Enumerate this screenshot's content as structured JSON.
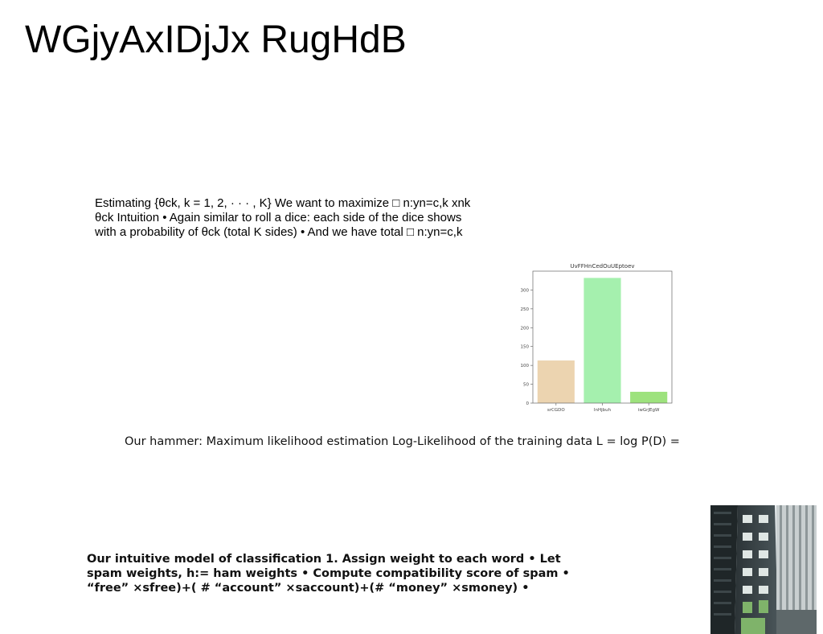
{
  "title": "WGjyAxIDjJx RugHdB",
  "paragraph1": {
    "lines": [
      "Estimating {θck, k = 1, 2, · · · , K} We want to maximize □ n:yn=c,k xnk",
      "θck Intuition • Again similar to roll a dice: each side of the dice shows",
      "with a probability of θck (total K sides) • And we have total □ n:yn=c,k"
    ]
  },
  "chart_data": {
    "type": "bar",
    "title": "UvFFHnCedOuUEptoev",
    "categories": [
      "srCGDO",
      "InHjbuh",
      "iwGrJEgW"
    ],
    "values": [
      113,
      332,
      30
    ],
    "colors": [
      "#ecd4b0",
      "#a5f0ae",
      "#9de27d"
    ],
    "ylim": [
      0,
      350
    ],
    "yticks": [
      0,
      50,
      100,
      150,
      200,
      250,
      300
    ],
    "xlabel": "",
    "ylabel": "",
    "grid": false
  },
  "paragraph2": "Our hammer: Maximum likelihood estimation Log-Likelihood of the training data L = log P(D) =",
  "paragraph3": {
    "lines": [
      "Our intuitive model of classification 1. Assign weight to each word • Let",
      "spam weights, h:= ham weights • Compute compatibility score of spam •",
      "“free” ×sfree)+( # “account” ×saccount)+(# “money” ×smoney) •"
    ]
  },
  "photo": {
    "icon": "building-photo"
  }
}
